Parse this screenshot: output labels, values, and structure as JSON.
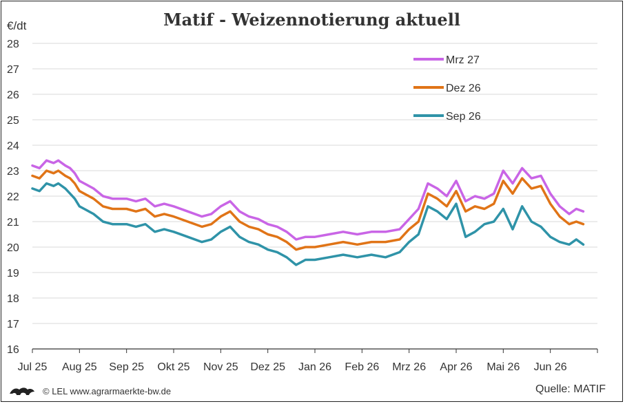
{
  "chart_data": {
    "type": "line",
    "title": "Matif - Weizennotierung aktuell",
    "ylabel": "€/dt",
    "xlabel": "",
    "ylim": [
      16,
      28
    ],
    "yticks": [
      16,
      17,
      18,
      19,
      20,
      21,
      22,
      23,
      24,
      25,
      26,
      27,
      28
    ],
    "xlim": [
      0,
      12
    ],
    "x_ticks": [
      "Jul 25",
      "Aug 25",
      "Sep 25",
      "Okt 25",
      "Nov 25",
      "Dez 25",
      "Jan 26",
      "Feb 26",
      "Mrz 26",
      "Apr 26",
      "Mai 26",
      "Jun 26"
    ],
    "grid": true,
    "legend_position": "top-right",
    "x": [
      0,
      0.15,
      0.3,
      0.45,
      0.55,
      0.7,
      0.8,
      0.9,
      1.0,
      1.1,
      1.3,
      1.5,
      1.7,
      2.0,
      2.2,
      2.4,
      2.6,
      2.8,
      3.0,
      3.3,
      3.6,
      3.8,
      4.0,
      4.2,
      4.4,
      4.6,
      4.8,
      5.0,
      5.2,
      5.4,
      5.6,
      5.8,
      6.0,
      6.3,
      6.6,
      6.9,
      7.2,
      7.5,
      7.8,
      8.0,
      8.2,
      8.4,
      8.6,
      8.8,
      9.0,
      9.2,
      9.4,
      9.6,
      9.8,
      10.0,
      10.2,
      10.4,
      10.6,
      10.8,
      11.0,
      11.2,
      11.4,
      11.55,
      11.7
    ],
    "series": [
      {
        "name": "Mrz 27",
        "color": "#c965e6",
        "values": [
          23.2,
          23.1,
          23.4,
          23.3,
          23.4,
          23.2,
          23.1,
          22.9,
          22.6,
          22.5,
          22.3,
          22.0,
          21.9,
          21.9,
          21.8,
          21.9,
          21.6,
          21.7,
          21.6,
          21.4,
          21.2,
          21.3,
          21.6,
          21.8,
          21.4,
          21.2,
          21.1,
          20.9,
          20.8,
          20.6,
          20.3,
          20.4,
          20.4,
          20.5,
          20.6,
          20.5,
          20.6,
          20.6,
          20.7,
          21.1,
          21.5,
          22.5,
          22.3,
          22.0,
          22.6,
          21.8,
          22.0,
          21.9,
          22.1,
          23.0,
          22.5,
          23.1,
          22.7,
          22.8,
          22.1,
          21.6,
          21.3,
          21.5,
          21.4
        ]
      },
      {
        "name": "Dez 26",
        "color": "#e07417",
        "values": [
          22.8,
          22.7,
          23.0,
          22.9,
          23.0,
          22.8,
          22.7,
          22.5,
          22.2,
          22.1,
          21.9,
          21.6,
          21.5,
          21.5,
          21.4,
          21.5,
          21.2,
          21.3,
          21.2,
          21.0,
          20.8,
          20.9,
          21.2,
          21.4,
          21.0,
          20.8,
          20.7,
          20.5,
          20.4,
          20.2,
          19.9,
          20.0,
          20.0,
          20.1,
          20.2,
          20.1,
          20.2,
          20.2,
          20.3,
          20.7,
          21.0,
          22.1,
          21.9,
          21.6,
          22.2,
          21.4,
          21.6,
          21.5,
          21.7,
          22.6,
          22.1,
          22.7,
          22.3,
          22.4,
          21.7,
          21.2,
          20.9,
          21.0,
          20.9
        ]
      },
      {
        "name": "Sep 26",
        "color": "#2f93a8",
        "values": [
          22.3,
          22.2,
          22.5,
          22.4,
          22.5,
          22.3,
          22.1,
          21.9,
          21.6,
          21.5,
          21.3,
          21.0,
          20.9,
          20.9,
          20.8,
          20.9,
          20.6,
          20.7,
          20.6,
          20.4,
          20.2,
          20.3,
          20.6,
          20.8,
          20.4,
          20.2,
          20.1,
          19.9,
          19.8,
          19.6,
          19.3,
          19.5,
          19.5,
          19.6,
          19.7,
          19.6,
          19.7,
          19.6,
          19.8,
          20.2,
          20.5,
          21.6,
          21.4,
          21.1,
          21.7,
          20.4,
          20.6,
          20.9,
          21.0,
          21.5,
          20.7,
          21.6,
          21.0,
          20.8,
          20.4,
          20.2,
          20.1,
          20.3,
          20.1
        ]
      }
    ]
  },
  "footer": {
    "copyright": "© LEL www.agrarmaerkte-bw.de",
    "source": "Quelle: MATIF"
  },
  "colors": {
    "grid": "#d9d9d9",
    "axis": "#333333"
  }
}
